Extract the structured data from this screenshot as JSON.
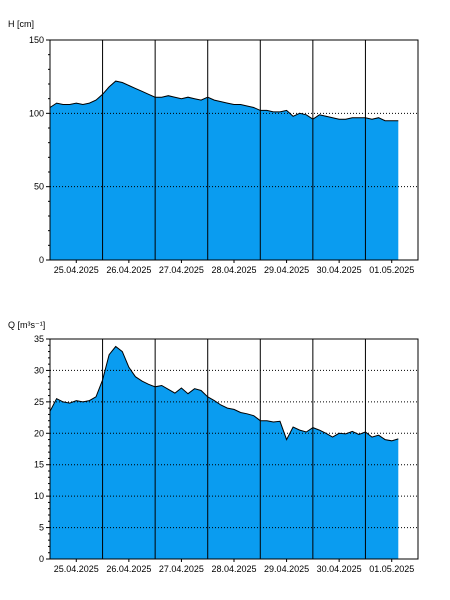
{
  "colors": {
    "fill": "#0a9cf0",
    "line": "#000000",
    "grid": "#000000",
    "background": "#ffffff"
  },
  "chart_data": [
    {
      "type": "area",
      "ylabel": "H [cm]",
      "ylim": [
        0,
        150
      ],
      "yticks": [
        0,
        50,
        100,
        150
      ],
      "ygrid_dotted": [
        50,
        100
      ],
      "x_range": [
        "2025-04-25T00:00",
        "2025-05-02T00:00"
      ],
      "day_lines": [
        "2025-04-26T00:00",
        "2025-04-27T00:00",
        "2025-04-28T00:00",
        "2025-04-29T00:00",
        "2025-04-30T00:00",
        "2025-05-01T00:00"
      ],
      "xtick_labels": [
        "25.04.2025",
        "26.04.2025",
        "27.04.2025",
        "28.04.2025",
        "29.04.2025",
        "30.04.2025",
        "01.05.2025"
      ],
      "series": [
        {
          "x": [
            "2025-04-25T00:00",
            "2025-04-25T03:00",
            "2025-04-25T06:00",
            "2025-04-25T09:00",
            "2025-04-25T12:00",
            "2025-04-25T15:00",
            "2025-04-25T18:00",
            "2025-04-25T21:00",
            "2025-04-26T00:00",
            "2025-04-26T03:00",
            "2025-04-26T06:00",
            "2025-04-26T09:00",
            "2025-04-26T12:00",
            "2025-04-26T15:00",
            "2025-04-26T18:00",
            "2025-04-26T21:00",
            "2025-04-27T00:00",
            "2025-04-27T03:00",
            "2025-04-27T06:00",
            "2025-04-27T09:00",
            "2025-04-27T12:00",
            "2025-04-27T15:00",
            "2025-04-27T18:00",
            "2025-04-27T21:00",
            "2025-04-28T00:00",
            "2025-04-28T03:00",
            "2025-04-28T06:00",
            "2025-04-28T09:00",
            "2025-04-28T12:00",
            "2025-04-28T15:00",
            "2025-04-28T18:00",
            "2025-04-28T21:00",
            "2025-04-29T00:00",
            "2025-04-29T03:00",
            "2025-04-29T06:00",
            "2025-04-29T09:00",
            "2025-04-29T12:00",
            "2025-04-29T15:00",
            "2025-04-29T18:00",
            "2025-04-29T21:00",
            "2025-04-30T00:00",
            "2025-04-30T03:00",
            "2025-04-30T06:00",
            "2025-04-30T09:00",
            "2025-04-30T12:00",
            "2025-04-30T15:00",
            "2025-04-30T18:00",
            "2025-04-30T21:00",
            "2025-05-01T00:00",
            "2025-05-01T03:00",
            "2025-05-01T06:00",
            "2025-05-01T09:00",
            "2025-05-01T12:00",
            "2025-05-01T15:00"
          ],
          "values": [
            104,
            107,
            106,
            106,
            107,
            106,
            107,
            109,
            113,
            118,
            122,
            121,
            119,
            117,
            115,
            113,
            111,
            111,
            112,
            111,
            110,
            111,
            110,
            109,
            111,
            109,
            108,
            107,
            106,
            106,
            105,
            104,
            102,
            102,
            101,
            101,
            102,
            98,
            100,
            99,
            96,
            99,
            98,
            97,
            96,
            96,
            97,
            97,
            97,
            96,
            97,
            95,
            95,
            95
          ]
        }
      ]
    },
    {
      "type": "area",
      "ylabel": "Q [m³s⁻¹]",
      "ylim": [
        0,
        35
      ],
      "yticks": [
        0,
        5,
        10,
        15,
        20,
        25,
        30,
        35
      ],
      "ygrid_dotted": [
        5,
        10,
        15,
        20,
        25,
        30
      ],
      "x_range": [
        "2025-04-25T00:00",
        "2025-05-02T00:00"
      ],
      "day_lines": [
        "2025-04-26T00:00",
        "2025-04-27T00:00",
        "2025-04-28T00:00",
        "2025-04-29T00:00",
        "2025-04-30T00:00",
        "2025-05-01T00:00"
      ],
      "xtick_labels": [
        "25.04.2025",
        "26.04.2025",
        "27.04.2025",
        "28.04.2025",
        "29.04.2025",
        "30.04.2025",
        "01.05.2025"
      ],
      "series": [
        {
          "x": [
            "2025-04-25T00:00",
            "2025-04-25T03:00",
            "2025-04-25T06:00",
            "2025-04-25T09:00",
            "2025-04-25T12:00",
            "2025-04-25T15:00",
            "2025-04-25T18:00",
            "2025-04-25T21:00",
            "2025-04-26T00:00",
            "2025-04-26T03:00",
            "2025-04-26T06:00",
            "2025-04-26T09:00",
            "2025-04-26T12:00",
            "2025-04-26T15:00",
            "2025-04-26T18:00",
            "2025-04-26T21:00",
            "2025-04-27T00:00",
            "2025-04-27T03:00",
            "2025-04-27T06:00",
            "2025-04-27T09:00",
            "2025-04-27T12:00",
            "2025-04-27T15:00",
            "2025-04-27T18:00",
            "2025-04-27T21:00",
            "2025-04-28T00:00",
            "2025-04-28T03:00",
            "2025-04-28T06:00",
            "2025-04-28T09:00",
            "2025-04-28T12:00",
            "2025-04-28T15:00",
            "2025-04-28T18:00",
            "2025-04-28T21:00",
            "2025-04-29T00:00",
            "2025-04-29T03:00",
            "2025-04-29T06:00",
            "2025-04-29T09:00",
            "2025-04-29T12:00",
            "2025-04-29T15:00",
            "2025-04-29T18:00",
            "2025-04-29T21:00",
            "2025-04-30T00:00",
            "2025-04-30T03:00",
            "2025-04-30T06:00",
            "2025-04-30T09:00",
            "2025-04-30T12:00",
            "2025-04-30T15:00",
            "2025-04-30T18:00",
            "2025-04-30T21:00",
            "2025-05-01T00:00",
            "2025-05-01T03:00",
            "2025-05-01T06:00",
            "2025-05-01T09:00",
            "2025-05-01T12:00",
            "2025-05-01T15:00"
          ],
          "values": [
            23.5,
            25.5,
            25,
            24.8,
            25.2,
            25,
            25.2,
            25.8,
            28.5,
            32.5,
            33.8,
            33,
            30.5,
            29,
            28.3,
            27.8,
            27.4,
            27.6,
            27,
            26.4,
            27.2,
            26.3,
            27.1,
            26.8,
            25.8,
            25.2,
            24.5,
            24,
            23.8,
            23.3,
            23.1,
            22.8,
            22,
            22,
            21.8,
            21.9,
            19,
            21,
            20.5,
            20.2,
            20.9,
            20.5,
            20,
            19.4,
            20,
            19.9,
            20.3,
            19.8,
            20.2,
            19.4,
            19.7,
            19,
            18.8,
            19.1
          ]
        }
      ]
    }
  ]
}
